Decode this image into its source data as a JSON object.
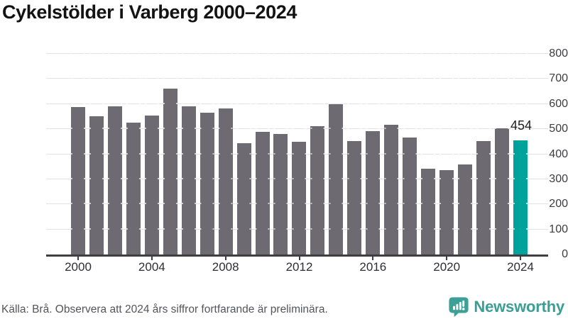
{
  "title": "Cykelstölder i Varberg 2000–2024",
  "chart_data": {
    "type": "bar",
    "title": "Cykelstölder i Varberg 2000–2024",
    "x": [
      2000,
      2001,
      2002,
      2003,
      2004,
      2005,
      2006,
      2007,
      2008,
      2009,
      2010,
      2011,
      2012,
      2013,
      2014,
      2015,
      2016,
      2017,
      2018,
      2019,
      2020,
      2021,
      2022,
      2023,
      2024
    ],
    "values": [
      587,
      550,
      591,
      526,
      555,
      662,
      591,
      566,
      583,
      444,
      489,
      481,
      450,
      513,
      600,
      452,
      492,
      516,
      467,
      343,
      337,
      359,
      452,
      504,
      454
    ],
    "highlight": {
      "year": 2024,
      "value": 454,
      "label": "454"
    },
    "ylim": [
      0,
      800
    ],
    "yticks": [
      0,
      100,
      200,
      300,
      400,
      500,
      600,
      700,
      800
    ],
    "xticks": [
      2000,
      2004,
      2008,
      2012,
      2016,
      2020,
      2024
    ],
    "grid": true,
    "legend": "none",
    "colors": {
      "bar": "#6d6a71",
      "highlight": "#00a39b",
      "gridline": "#e2e2e2",
      "axis": "#3f3f42"
    }
  },
  "footer": {
    "source": "Källa: Brå. Observera att 2024 års siffror fortfarande är preliminära.",
    "brand": "Newsworthy",
    "brand_color": "#3b9e95",
    "logo_icon": "newsworthy-speech-bubble-bar-chart-icon"
  }
}
